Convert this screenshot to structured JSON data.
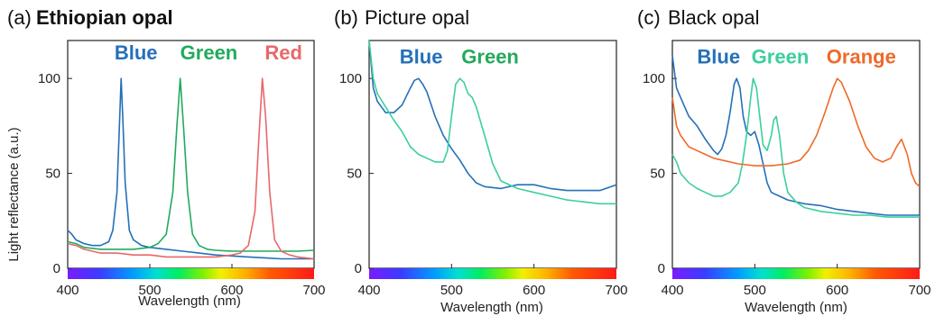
{
  "colors": {
    "blue": "#2470b8",
    "green": "#22aa5c",
    "red": "#e8676b",
    "teal": "#3ccf9c",
    "orange": "#ee6a2a",
    "axis": "#222222"
  },
  "chart_data": [
    {
      "type": "line",
      "title_prefix": "(a)",
      "title": "Ethiopian opal",
      "xlabel": "Wavelength  (nm)",
      "ylabel": "Light reflectance (a.u.)",
      "xlim": [
        400,
        700
      ],
      "ylim": [
        0,
        120
      ],
      "xticks": [
        400,
        500,
        600,
        700
      ],
      "yticks": [
        0,
        50,
        100
      ],
      "colorbar": "visible spectrum 400-700 nm",
      "annotations": [
        {
          "text": "Blue",
          "color": "blue",
          "x": 457,
          "y": 110
        },
        {
          "text": "Green",
          "color": "green",
          "x": 537,
          "y": 110
        },
        {
          "text": "Red",
          "color": "red",
          "x": 640,
          "y": 110
        }
      ],
      "series": [
        {
          "color": "blue",
          "x": [
            400,
            405,
            410,
            420,
            430,
            440,
            450,
            455,
            460,
            463,
            465,
            467,
            470,
            475,
            480,
            490,
            500,
            520,
            540,
            560,
            580,
            600,
            620,
            640,
            660,
            680,
            700
          ],
          "y": [
            20,
            18,
            15,
            13,
            12,
            12,
            14,
            20,
            40,
            75,
            100,
            80,
            45,
            20,
            15,
            12,
            11,
            10,
            9,
            8,
            7,
            6.5,
            6,
            5.5,
            5,
            5,
            5
          ]
        },
        {
          "color": "green",
          "x": [
            400,
            410,
            420,
            440,
            460,
            480,
            500,
            510,
            520,
            528,
            533,
            537,
            541,
            546,
            552,
            560,
            570,
            580,
            600,
            620,
            640,
            660,
            680,
            700
          ],
          "y": [
            14,
            13,
            11,
            10,
            10,
            10,
            11,
            13,
            18,
            40,
            75,
            100,
            75,
            40,
            18,
            12,
            10,
            9.5,
            9,
            9,
            9,
            9,
            9,
            9.5
          ]
        },
        {
          "color": "red",
          "x": [
            400,
            410,
            420,
            440,
            460,
            480,
            500,
            520,
            540,
            560,
            580,
            600,
            610,
            620,
            628,
            633,
            637,
            641,
            646,
            652,
            660,
            670,
            680,
            700
          ],
          "y": [
            13,
            12,
            10,
            8,
            8,
            7,
            7,
            6,
            6,
            6,
            6,
            7,
            8,
            12,
            30,
            70,
            100,
            80,
            40,
            15,
            9,
            7,
            6,
            5
          ]
        }
      ]
    },
    {
      "type": "line",
      "title_prefix": "(b)",
      "title": "Picture opal",
      "xlabel": "Wavelength  (nm)",
      "ylabel": "",
      "xlim": [
        400,
        700
      ],
      "ylim": [
        0,
        120
      ],
      "xticks": [
        400,
        500,
        600,
        700
      ],
      "yticks": [
        0,
        50,
        100
      ],
      "colorbar": "visible spectrum 400-700 nm",
      "annotations": [
        {
          "text": "Blue",
          "color": "blue",
          "x": 437,
          "y": 108
        },
        {
          "text": "Green",
          "color": "green",
          "x": 512,
          "y": 108
        }
      ],
      "series": [
        {
          "color": "blue",
          "x": [
            400,
            405,
            410,
            415,
            420,
            430,
            440,
            450,
            455,
            460,
            465,
            470,
            480,
            490,
            500,
            510,
            520,
            530,
            540,
            560,
            580,
            600,
            620,
            640,
            660,
            680,
            700
          ],
          "y": [
            120,
            95,
            88,
            85,
            82,
            82,
            86,
            95,
            99,
            100,
            97,
            93,
            80,
            70,
            63,
            57,
            50,
            45,
            43,
            42,
            44,
            44,
            42,
            41,
            41,
            41,
            44
          ]
        },
        {
          "color": "teal",
          "x": [
            400,
            405,
            410,
            420,
            430,
            440,
            450,
            460,
            470,
            480,
            490,
            495,
            500,
            505,
            510,
            515,
            520,
            525,
            530,
            540,
            550,
            560,
            580,
            600,
            620,
            640,
            660,
            680,
            700
          ],
          "y": [
            120,
            100,
            92,
            85,
            78,
            72,
            64,
            60,
            58,
            56,
            56,
            62,
            80,
            97,
            100,
            98,
            92,
            90,
            85,
            70,
            55,
            46,
            42,
            40,
            38,
            36,
            35,
            34,
            34
          ]
        }
      ]
    },
    {
      "type": "line",
      "title_prefix": "(c)",
      "title": "Black opal",
      "xlabel": "Wavelength  (nm)",
      "ylabel": "",
      "xlim": [
        400,
        700
      ],
      "ylim": [
        0,
        120
      ],
      "xticks": [
        400,
        500,
        600,
        700
      ],
      "yticks": [
        0,
        50,
        100
      ],
      "colorbar": "visible spectrum 400-700 nm",
      "annotations": [
        {
          "text": "Blue",
          "color": "blue",
          "x": 430,
          "y": 108
        },
        {
          "text": "Green",
          "color": "teal",
          "x": 496,
          "y": 108
        },
        {
          "text": "Orange",
          "color": "orange",
          "x": 587,
          "y": 108
        }
      ],
      "series": [
        {
          "color": "blue",
          "x": [
            400,
            405,
            410,
            415,
            420,
            430,
            440,
            450,
            455,
            460,
            465,
            470,
            475,
            478,
            482,
            486,
            490,
            495,
            500,
            505,
            510,
            515,
            520,
            530,
            540,
            560,
            580,
            600,
            620,
            640,
            660,
            680,
            700
          ],
          "y": [
            112,
            95,
            90,
            85,
            80,
            75,
            68,
            62,
            60,
            63,
            70,
            82,
            97,
            100,
            95,
            80,
            72,
            70,
            72,
            65,
            55,
            45,
            40,
            38,
            36,
            34,
            33,
            31,
            30,
            29,
            28,
            28,
            28
          ]
        },
        {
          "color": "teal",
          "x": [
            400,
            405,
            410,
            420,
            430,
            440,
            450,
            460,
            470,
            480,
            485,
            490,
            495,
            498,
            502,
            506,
            510,
            515,
            520,
            523,
            526,
            530,
            535,
            540,
            550,
            560,
            580,
            600,
            620,
            640,
            660,
            680,
            700
          ],
          "y": [
            60,
            56,
            50,
            45,
            42,
            40,
            38,
            38,
            40,
            45,
            55,
            70,
            90,
            100,
            95,
            80,
            65,
            62,
            70,
            78,
            80,
            70,
            50,
            40,
            35,
            32,
            30,
            29,
            28,
            28,
            27,
            27,
            27
          ]
        },
        {
          "color": "orange",
          "x": [
            400,
            405,
            410,
            420,
            430,
            440,
            450,
            460,
            480,
            500,
            520,
            540,
            555,
            565,
            575,
            585,
            595,
            600,
            605,
            615,
            625,
            635,
            645,
            655,
            665,
            672,
            678,
            685,
            690,
            695,
            700
          ],
          "y": [
            90,
            75,
            70,
            64,
            62,
            60,
            58,
            57,
            55,
            54,
            54,
            55,
            57,
            62,
            70,
            82,
            95,
            100,
            98,
            88,
            75,
            64,
            58,
            56,
            58,
            64,
            68,
            60,
            50,
            45,
            43
          ]
        }
      ]
    }
  ]
}
